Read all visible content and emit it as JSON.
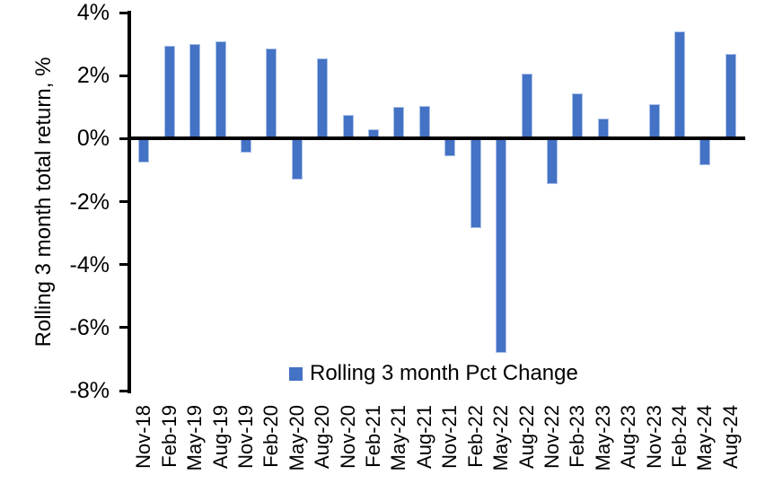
{
  "chart_data": {
    "type": "bar",
    "title": "",
    "ylabel": "Rolling 3 month total return, %",
    "xlabel": "",
    "legend": [
      "Rolling 3 month Pct Change"
    ],
    "legend_position": "bottom-center-inside-plot",
    "grid": false,
    "categories": [
      "Nov-18",
      "Feb-19",
      "May-19",
      "Aug-19",
      "Nov-19",
      "Feb-20",
      "May-20",
      "Aug-20",
      "Nov-20",
      "Feb-21",
      "May-21",
      "Aug-21",
      "Nov-21",
      "Feb-22",
      "May-22",
      "Aug-22",
      "Nov-22",
      "Feb-23",
      "May-23",
      "Aug-23",
      "Nov-23",
      "Feb-24",
      "May-24",
      "Aug-24"
    ],
    "values": [
      -0.75,
      2.95,
      3.0,
      3.1,
      -0.45,
      2.85,
      -1.3,
      2.55,
      0.75,
      0.3,
      1.0,
      1.05,
      -0.55,
      -2.85,
      -6.8,
      2.05,
      -1.45,
      1.45,
      0.65,
      0.0,
      1.1,
      3.4,
      -0.85,
      2.7
    ],
    "ylim": [
      -8,
      4
    ],
    "yticks": [
      4,
      2,
      0,
      -2,
      -4,
      -6,
      -8
    ],
    "ytick_labels": [
      "4%",
      "2%",
      "0%",
      "-2%",
      "-4%",
      "-6%",
      "-8%"
    ],
    "colors": {
      "bar_fill": "#4472C4",
      "bar_border": "#A9C1E9",
      "axis": "#000000",
      "text": "#000000",
      "background": "#FFFFFF"
    }
  }
}
